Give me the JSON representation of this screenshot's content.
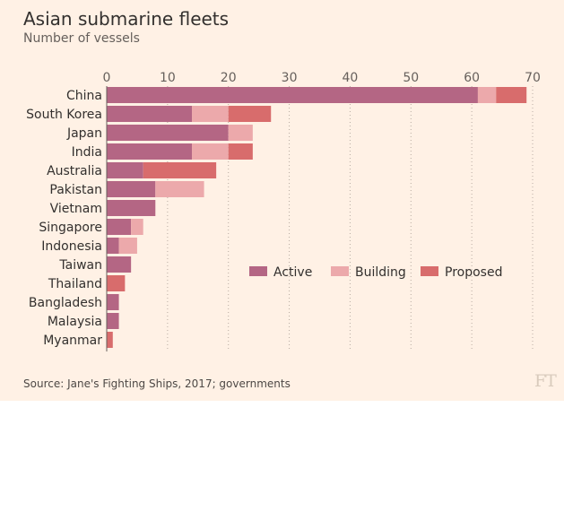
{
  "title": "Asian submarine fleets",
  "subtitle": "Number of vessels",
  "source": "Source: Jane's Fighting Ships, 2017; governments",
  "logo": "FT",
  "colors": {
    "active": "#b46684",
    "building": "#eca9ab",
    "proposed": "#d86c6c",
    "grid": "#b8aca2",
    "axis": "#66605c"
  },
  "chart_data": {
    "type": "bar",
    "orientation": "horizontal",
    "stacked": true,
    "title": "Asian submarine fleets",
    "subtitle": "Number of vessels",
    "xlim": [
      0,
      70
    ],
    "xticks": [
      0,
      10,
      20,
      30,
      40,
      50,
      60,
      70
    ],
    "grid": true,
    "legend_position": "center-right",
    "categories": [
      "China",
      "South Korea",
      "Japan",
      "India",
      "Australia",
      "Pakistan",
      "Vietnam",
      "Singapore",
      "Indonesia",
      "Taiwan",
      "Thailand",
      "Bangladesh",
      "Malaysia",
      "Myanmar"
    ],
    "series": [
      {
        "name": "Active",
        "values": [
          61,
          14,
          20,
          14,
          6,
          8,
          8,
          4,
          2,
          4,
          0,
          2,
          2,
          0
        ],
        "color": "#b46684"
      },
      {
        "name": "Building",
        "values": [
          3,
          6,
          4,
          6,
          0,
          8,
          0,
          2,
          3,
          0,
          0,
          0,
          0,
          0
        ],
        "color": "#eca9ab"
      },
      {
        "name": "Proposed",
        "values": [
          5,
          7,
          0,
          4,
          12,
          0,
          0,
          0,
          0,
          0,
          3,
          0,
          0,
          1
        ],
        "color": "#d86c6c"
      }
    ]
  }
}
